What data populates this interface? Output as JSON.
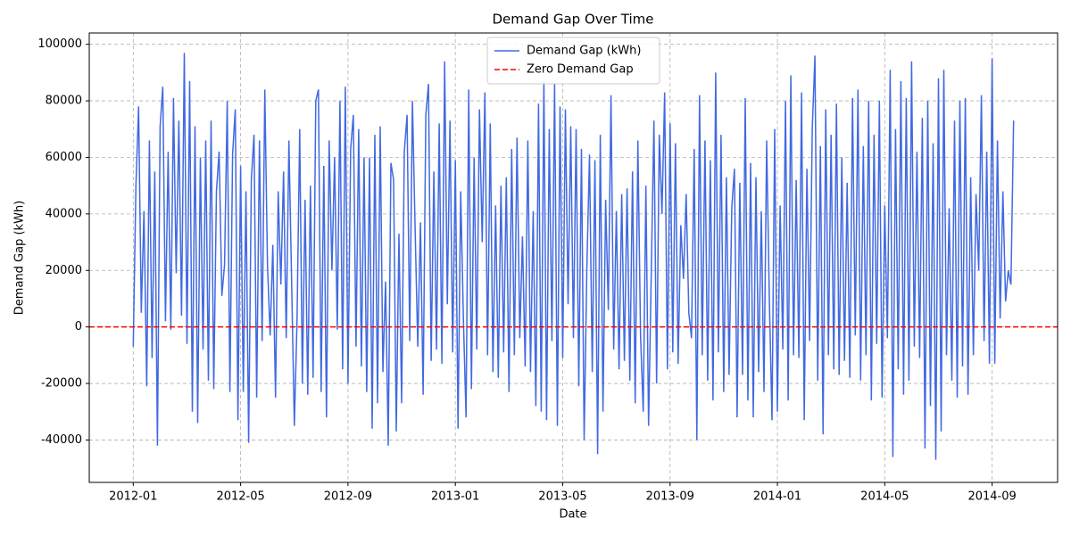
{
  "chart_data": {
    "type": "line",
    "title": "Demand Gap Over Time",
    "x_label": "Date",
    "y_label": "Demand Gap (kWh)",
    "x": [
      "2012-01",
      "2012-02",
      "2012-03",
      "2012-04",
      "2012-05",
      "2012-06",
      "2012-07",
      "2012-08",
      "2012-09",
      "2012-10",
      "2012-11",
      "2012-12",
      "2013-01",
      "2013-02",
      "2013-03",
      "2013-04",
      "2013-05",
      "2013-06",
      "2013-07",
      "2013-08",
      "2013-09",
      "2013-10",
      "2013-11",
      "2013-12",
      "2014-01",
      "2014-02",
      "2014-03",
      "2014-04",
      "2014-05",
      "2014-06",
      "2014-07",
      "2014-08",
      "2014-09"
    ],
    "series": [
      {
        "name": "Demand Gap (kWh)",
        "color": "#4169e1",
        "values": [
          [
            -7000,
            50000,
            78000,
            5000,
            41000,
            -21000,
            66000,
            -11000,
            55000,
            -42000
          ],
          [
            71000,
            85000,
            2000,
            62000,
            -1000,
            81000,
            19000,
            73000,
            4000,
            97000
          ],
          [
            -6000,
            87000,
            -30000,
            71000,
            -34000,
            60000,
            -8000,
            66000,
            -19000,
            73000
          ],
          [
            -22000,
            48000,
            62000,
            11000,
            22000,
            80000,
            -23000,
            61000,
            77000,
            -33000
          ],
          [
            57000,
            -23000,
            48000,
            -41000,
            52000,
            68000,
            -25000,
            66000,
            -5000,
            84000
          ],
          [
            22000,
            -3000,
            29000,
            -25000,
            48000,
            15000,
            55000,
            -4000,
            66000,
            17000
          ],
          [
            -35000,
            2000,
            70000,
            -20000,
            45000,
            -24000,
            50000,
            -18000,
            80000,
            84000
          ],
          [
            -23000,
            57000,
            -32000,
            66000,
            20000,
            60000,
            -1000,
            80000,
            -15000,
            85000
          ],
          [
            -20000,
            63000,
            75000,
            -7000,
            70000,
            -14000,
            60000,
            -23000,
            60000,
            -36000
          ],
          [
            68000,
            -27000,
            71000,
            -16000,
            16000,
            -42000,
            58000,
            52000,
            -37000,
            33000
          ],
          [
            -27000,
            62000,
            75000,
            -5000,
            80000,
            35000,
            -7000,
            37000,
            -24000,
            75000
          ],
          [
            86000,
            -12000,
            55000,
            -8000,
            72000,
            -13000,
            94000,
            8000,
            73000,
            -9000
          ],
          [
            59000,
            -36000,
            48000,
            3000,
            -32000,
            84000,
            -22000,
            60000,
            -8000,
            77000
          ],
          [
            30000,
            83000,
            -10000,
            72000,
            -16000,
            43000,
            -18000,
            50000,
            -9000,
            53000
          ],
          [
            -23000,
            63000,
            -10000,
            67000,
            -4000,
            32000,
            -14000,
            66000,
            -16000,
            41000
          ],
          [
            -28000,
            79000,
            -30000,
            87000,
            -33000,
            70000,
            -5000,
            86000,
            -35000,
            78000
          ],
          [
            -11000,
            77000,
            8000,
            71000,
            -4000,
            70000,
            -21000,
            63000,
            -40000,
            20000
          ],
          [
            61000,
            -16000,
            59000,
            -45000,
            68000,
            -30000,
            45000,
            6000,
            82000,
            -8000
          ],
          [
            41000,
            -15000,
            47000,
            -12000,
            49000,
            -19000,
            55000,
            -27000,
            66000,
            -3000
          ],
          [
            -30000,
            50000,
            -35000,
            19000,
            73000,
            -20000,
            68000,
            40000,
            83000,
            -15000
          ],
          [
            72000,
            -9000,
            65000,
            -13000,
            36000,
            17000,
            47000,
            5000,
            -4000,
            63000
          ],
          [
            -40000,
            82000,
            -10000,
            66000,
            -19000,
            59000,
            -26000,
            90000,
            -9000,
            68000
          ],
          [
            -23000,
            53000,
            -17000,
            42000,
            56000,
            -32000,
            51000,
            -17000,
            81000,
            -26000
          ],
          [
            58000,
            -32000,
            53000,
            -16000,
            41000,
            -23000,
            66000,
            10000,
            -33000,
            70000
          ],
          [
            -30000,
            43000,
            -8000,
            80000,
            -26000,
            89000,
            -10000,
            52000,
            -11000,
            83000
          ],
          [
            -33000,
            56000,
            -5000,
            70000,
            96000,
            -19000,
            64000,
            -38000,
            77000,
            -10000
          ],
          [
            68000,
            -15000,
            79000,
            -17000,
            60000,
            -12000,
            51000,
            -18000,
            81000,
            -3000
          ],
          [
            84000,
            -19000,
            64000,
            -10000,
            80000,
            -26000,
            68000,
            -6000,
            80000,
            -25000
          ],
          [
            43000,
            -4000,
            91000,
            -46000,
            70000,
            -15000,
            87000,
            -24000,
            81000,
            -19000
          ],
          [
            94000,
            -7000,
            62000,
            -11000,
            74000,
            -43000,
            80000,
            -28000,
            65000,
            -47000
          ],
          [
            88000,
            -37000,
            91000,
            -10000,
            42000,
            -19000,
            73000,
            -25000,
            80000,
            -14000
          ],
          [
            81000,
            -24000,
            53000,
            -10000,
            47000,
            20000,
            82000,
            -5000,
            62000,
            -13000
          ],
          [
            95000,
            -13000,
            66000,
            3000,
            48000,
            9000,
            20000,
            15000,
            73000
          ]
        ]
      }
    ],
    "reference_lines": [
      {
        "name": "Zero Demand Gap",
        "value": 0,
        "color": "#ff0000",
        "style": "dashed"
      }
    ],
    "ylim": [
      -55000,
      104000
    ],
    "yticks": [
      -40000,
      -20000,
      0,
      20000,
      40000,
      60000,
      80000,
      100000
    ],
    "xticks": [
      "2012-01",
      "2012-05",
      "2012-09",
      "2013-01",
      "2013-05",
      "2013-09",
      "2014-01",
      "2014-05",
      "2014-09"
    ],
    "grid": true,
    "legend": "upper center"
  }
}
